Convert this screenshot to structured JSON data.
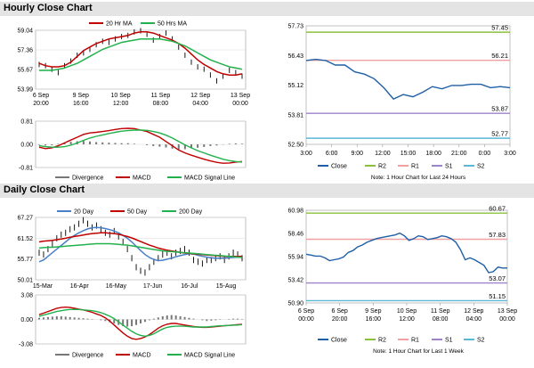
{
  "sections": {
    "hourly_title": "Hourly Close Chart",
    "daily_title": "Daily Close Chart"
  },
  "colors": {
    "ma_short": "#c00000",
    "ma_long": "#22b14c",
    "close_line": "#1f5fa6",
    "r2": "#8cc03c",
    "r1": "#f0a0a0",
    "s1": "#9d83c9",
    "s2": "#5ab7d8",
    "divergence": "#777777",
    "macd": "#c00000",
    "signal": "#22b14c",
    "ma20_daily": "#4a80c8",
    "ma50_daily": "#c00000",
    "ma200_daily": "#22b14c"
  },
  "chart_data": [
    {
      "id": "hourly-price",
      "type": "line",
      "legend": [
        "20 Hr MA",
        "50 Hrs MA"
      ],
      "y_ticks": [
        "59.04",
        "57.36",
        "55.67",
        "53.99"
      ],
      "ylim": [
        53.99,
        59.04
      ],
      "x_ticks": [
        [
          "6 Sep",
          "20:00"
        ],
        [
          "9 Sep",
          "16:00"
        ],
        [
          "10 Sep",
          "12:00"
        ],
        [
          "11 Sep",
          "08:00"
        ],
        [
          "12 Sep",
          "04:00"
        ],
        [
          "13 Sep",
          "00:00"
        ]
      ],
      "close": [
        56.1,
        56.0,
        55.7,
        55.4,
        56.0,
        56.4,
        56.9,
        57.1,
        57.4,
        57.8,
        58.1,
        58.0,
        58.3,
        58.5,
        58.6,
        58.9,
        59.0,
        58.7,
        58.2,
        58.5,
        58.8,
        58.3,
        57.6,
        56.9,
        56.3,
        55.9,
        55.7,
        55.2,
        54.7,
        55.1,
        55.6,
        55.4,
        55.1
      ],
      "series": [
        {
          "name": "20 Hr MA",
          "values": [
            56.2,
            56.0,
            55.9,
            55.9,
            56.0,
            56.3,
            56.8,
            57.3,
            57.6,
            57.9,
            58.1,
            58.3,
            58.4,
            58.5,
            58.6,
            58.8,
            58.9,
            58.9,
            58.8,
            58.6,
            58.4,
            58.2,
            57.9,
            57.5,
            57.0,
            56.5,
            56.1,
            55.8,
            55.5,
            55.3,
            55.2,
            55.2,
            55.3
          ]
        },
        {
          "name": "50 Hrs MA",
          "values": [
            55.6,
            55.6,
            55.6,
            55.7,
            55.8,
            56.0,
            56.2,
            56.5,
            56.8,
            57.1,
            57.4,
            57.6,
            57.8,
            58.0,
            58.1,
            58.2,
            58.3,
            58.3,
            58.3,
            58.3,
            58.2,
            58.1,
            57.9,
            57.7,
            57.4,
            57.1,
            56.8,
            56.5,
            56.3,
            56.1,
            55.9,
            55.8,
            55.7
          ]
        }
      ]
    },
    {
      "id": "hourly-macd",
      "type": "line",
      "legend": [
        "Divergence",
        "MACD",
        "MACD Signal Line"
      ],
      "y_ticks": [
        "0.81",
        "0.00",
        "-0.81"
      ],
      "ylim": [
        -0.81,
        0.81
      ],
      "divergence": [
        -0.02,
        -0.04,
        -0.03,
        0.02,
        0.06,
        0.09,
        0.11,
        0.12,
        0.1,
        0.08,
        0.07,
        0.06,
        0.05,
        0.04,
        0.04,
        0.02,
        0.0,
        -0.03,
        -0.06,
        -0.08,
        -0.11,
        -0.15,
        -0.18,
        -0.17,
        -0.14,
        -0.12,
        -0.09,
        -0.06,
        -0.04,
        -0.01,
        0.02,
        0.03,
        0.02
      ],
      "series": [
        {
          "name": "MACD",
          "values": [
            -0.1,
            -0.15,
            -0.12,
            -0.05,
            0.05,
            0.15,
            0.25,
            0.35,
            0.4,
            0.42,
            0.45,
            0.48,
            0.52,
            0.55,
            0.56,
            0.55,
            0.5,
            0.45,
            0.35,
            0.25,
            0.1,
            -0.05,
            -0.2,
            -0.3,
            -0.38,
            -0.45,
            -0.52,
            -0.58,
            -0.63,
            -0.66,
            -0.65,
            -0.62,
            -0.6
          ]
        },
        {
          "name": "MACD Signal Line",
          "values": [
            -0.05,
            -0.08,
            -0.1,
            -0.1,
            -0.08,
            -0.03,
            0.05,
            0.14,
            0.22,
            0.28,
            0.33,
            0.38,
            0.42,
            0.46,
            0.48,
            0.5,
            0.5,
            0.49,
            0.45,
            0.4,
            0.32,
            0.22,
            0.1,
            -0.02,
            -0.12,
            -0.22,
            -0.3,
            -0.38,
            -0.45,
            -0.52,
            -0.57,
            -0.6,
            -0.62
          ]
        }
      ]
    },
    {
      "id": "hourly-close-levels",
      "type": "line",
      "y_ticks": [
        "57.73",
        "56.43",
        "55.12",
        "53.81",
        "52.50"
      ],
      "ylim": [
        52.5,
        57.73
      ],
      "x_ticks": [
        "3:00",
        "6:00",
        "9:00",
        "12:00",
        "15:00",
        "18:00",
        "21:00",
        "0:00",
        "3:00"
      ],
      "levels": [
        {
          "name": "R2",
          "value": 57.45,
          "label": "57.45"
        },
        {
          "name": "R1",
          "value": 56.21,
          "label": "56.21"
        },
        {
          "name": "S1",
          "value": 53.87,
          "label": "53.87"
        },
        {
          "name": "S2",
          "value": 52.77,
          "label": "52.77"
        }
      ],
      "close": [
        56.2,
        56.25,
        56.2,
        56.0,
        56.0,
        55.7,
        55.6,
        55.4,
        55.0,
        54.5,
        54.7,
        54.6,
        54.8,
        55.05,
        54.95,
        55.1,
        55.1,
        55.15,
        55.15,
        55.0,
        55.05,
        55.0
      ],
      "legend": [
        "Close",
        "R2",
        "R1",
        "S1",
        "S2"
      ],
      "note": "Note: 1 Hour Chart for Last 24 Hours"
    },
    {
      "id": "daily-price",
      "type": "line",
      "legend": [
        "20 Day",
        "50 Day",
        "200 Day"
      ],
      "y_ticks": [
        "67.27",
        "61.52",
        "55.77",
        "50.01"
      ],
      "ylim": [
        50.01,
        67.27
      ],
      "x_ticks": [
        "15-Mar",
        "16-Apr",
        "16-May",
        "17-Jun",
        "16-Jul",
        "15-Aug"
      ],
      "close": [
        57.5,
        57.0,
        58.5,
        60.0,
        61.5,
        62.5,
        63.0,
        64.0,
        64.5,
        65.5,
        66.5,
        65.5,
        64.5,
        65.0,
        64.0,
        63.0,
        62.5,
        63.5,
        62.0,
        60.5,
        58.5,
        56.0,
        53.5,
        52.5,
        52.0,
        53.5,
        55.0,
        56.0,
        57.0,
        57.5,
        56.5,
        57.5,
        58.0,
        58.5,
        57.5,
        55.5,
        55.0,
        54.5,
        55.5,
        55.5,
        56.0,
        56.5,
        55.5,
        56.5,
        57.5,
        57.0,
        56.0
      ],
      "series": [
        {
          "name": "20 Day",
          "values": [
            55.0,
            55.5,
            56.5,
            57.5,
            58.5,
            59.5,
            60.5,
            61.5,
            62.3,
            63.0,
            63.6,
            64.1,
            64.4,
            64.5,
            64.4,
            64.2,
            63.9,
            63.5,
            63.0,
            62.3,
            61.5,
            60.5,
            59.3,
            58.1,
            57.0,
            56.2,
            55.6,
            55.3,
            55.4,
            55.7,
            56.0,
            56.4,
            56.7,
            57.0,
            57.2,
            57.1,
            56.8,
            56.5,
            56.3,
            56.1,
            56.0,
            56.0,
            56.0,
            56.1,
            56.2,
            56.3,
            56.4
          ]
        },
        {
          "name": "50 Day",
          "values": [
            60.5,
            60.7,
            60.8,
            60.9,
            61.1,
            61.3,
            61.5,
            61.8,
            62.0,
            62.2,
            62.4,
            62.6,
            62.8,
            62.9,
            63.0,
            63.0,
            62.9,
            62.8,
            62.6,
            62.3,
            62.0,
            61.6,
            61.1,
            60.6,
            60.1,
            59.6,
            59.2,
            58.8,
            58.5,
            58.2,
            58.0,
            57.8,
            57.6,
            57.4,
            57.3,
            57.2,
            57.1,
            57.0,
            56.9,
            56.8,
            56.7,
            56.6,
            56.5,
            56.5,
            56.5,
            56.5,
            56.5
          ]
        },
        {
          "name": "200 Day",
          "values": [
            58.8,
            58.9,
            59.0,
            59.0,
            59.1,
            59.2,
            59.3,
            59.4,
            59.5,
            59.6,
            59.7,
            59.8,
            59.9,
            60.0,
            60.0,
            60.0,
            60.0,
            59.9,
            59.8,
            59.7,
            59.6,
            59.4,
            59.2,
            59.0,
            58.8,
            58.6,
            58.4,
            58.2,
            58.0,
            57.9,
            57.8,
            57.7,
            57.6,
            57.5,
            57.4,
            57.3,
            57.2,
            57.1,
            57.0,
            56.9,
            56.8,
            56.7,
            56.6,
            56.5,
            56.4,
            56.3,
            56.2
          ]
        }
      ]
    },
    {
      "id": "daily-macd",
      "type": "line",
      "legend": [
        "Divergence",
        "MACD",
        "MACD Signal Line"
      ],
      "y_ticks": [
        "3.08",
        "0.00",
        "-3.08"
      ],
      "ylim": [
        -3.08,
        3.08
      ],
      "divergence": [
        0.2,
        0.25,
        0.3,
        0.35,
        0.4,
        0.4,
        0.35,
        0.3,
        0.25,
        0.2,
        0.15,
        0.1,
        0.05,
        0.0,
        -0.1,
        -0.2,
        -0.35,
        -0.5,
        -0.7,
        -0.85,
        -0.9,
        -0.85,
        -0.7,
        -0.5,
        -0.3,
        -0.1,
        0.1,
        0.25,
        0.4,
        0.5,
        0.55,
        0.5,
        0.4,
        0.3,
        0.2,
        0.1,
        0.0,
        -0.1,
        -0.2,
        -0.15,
        -0.1,
        -0.05,
        0.0,
        0.05,
        0.1,
        0.1,
        0.05
      ],
      "series": [
        {
          "name": "MACD",
          "values": [
            0.6,
            0.8,
            1.0,
            1.2,
            1.4,
            1.5,
            1.55,
            1.5,
            1.4,
            1.3,
            1.2,
            1.05,
            0.9,
            0.7,
            0.5,
            0.2,
            -0.2,
            -0.7,
            -1.2,
            -1.7,
            -2.1,
            -2.4,
            -2.5,
            -2.4,
            -2.2,
            -1.9,
            -1.5,
            -1.1,
            -0.8,
            -0.6,
            -0.5,
            -0.5,
            -0.6,
            -0.7,
            -0.8,
            -0.9,
            -0.95,
            -1.0,
            -1.0,
            -0.95,
            -0.9,
            -0.85,
            -0.8,
            -0.75,
            -0.7,
            -0.65,
            -0.6
          ]
        },
        {
          "name": "MACD Signal Line",
          "values": [
            0.4,
            0.55,
            0.7,
            0.85,
            1.0,
            1.1,
            1.2,
            1.25,
            1.25,
            1.25,
            1.2,
            1.15,
            1.1,
            1.0,
            0.85,
            0.65,
            0.4,
            0.1,
            -0.3,
            -0.7,
            -1.1,
            -1.5,
            -1.8,
            -2.0,
            -2.1,
            -2.0,
            -1.8,
            -1.5,
            -1.2,
            -1.0,
            -0.9,
            -0.85,
            -0.85,
            -0.85,
            -0.9,
            -0.95,
            -0.95,
            -0.95,
            -0.95,
            -0.9,
            -0.85,
            -0.8,
            -0.78,
            -0.75,
            -0.72,
            -0.7,
            -0.65
          ]
        }
      ]
    },
    {
      "id": "daily-close-levels",
      "type": "line",
      "y_ticks": [
        "60.98",
        "58.46",
        "55.94",
        "53.42",
        "50.90"
      ],
      "ylim": [
        50.9,
        60.98
      ],
      "x_ticks": [
        [
          "6 Sep",
          "00:00"
        ],
        [
          "6 Sep",
          "20:00"
        ],
        [
          "9 Sep",
          "16:00"
        ],
        [
          "10 Sep",
          "12:00"
        ],
        [
          "11 Sep",
          "08:00"
        ],
        [
          "12 Sep",
          "04:00"
        ],
        [
          "13 Sep",
          "00:00"
        ]
      ],
      "levels": [
        {
          "name": "R2",
          "value": 60.67,
          "label": "60.67"
        },
        {
          "name": "R1",
          "value": 57.83,
          "label": "57.83"
        },
        {
          "name": "S1",
          "value": 53.07,
          "label": "53.07"
        },
        {
          "name": "S2",
          "value": 51.15,
          "label": "51.15"
        }
      ],
      "close": [
        56.2,
        56.1,
        56.0,
        56.0,
        55.8,
        55.5,
        55.6,
        55.7,
        55.9,
        56.4,
        56.6,
        57.0,
        57.2,
        57.5,
        57.7,
        57.9,
        58.0,
        58.1,
        58.2,
        58.3,
        58.5,
        58.2,
        57.7,
        57.9,
        58.2,
        58.1,
        57.8,
        57.9,
        58.0,
        58.2,
        58.1,
        57.9,
        57.5,
        56.7,
        55.6,
        55.8,
        55.6,
        55.3,
        55.0,
        54.2,
        54.3,
        54.8,
        54.7,
        54.7
      ],
      "legend": [
        "Close",
        "R2",
        "R1",
        "S1",
        "S2"
      ],
      "note": "Note: 1 Hour Chart for Last 1 Week"
    }
  ]
}
